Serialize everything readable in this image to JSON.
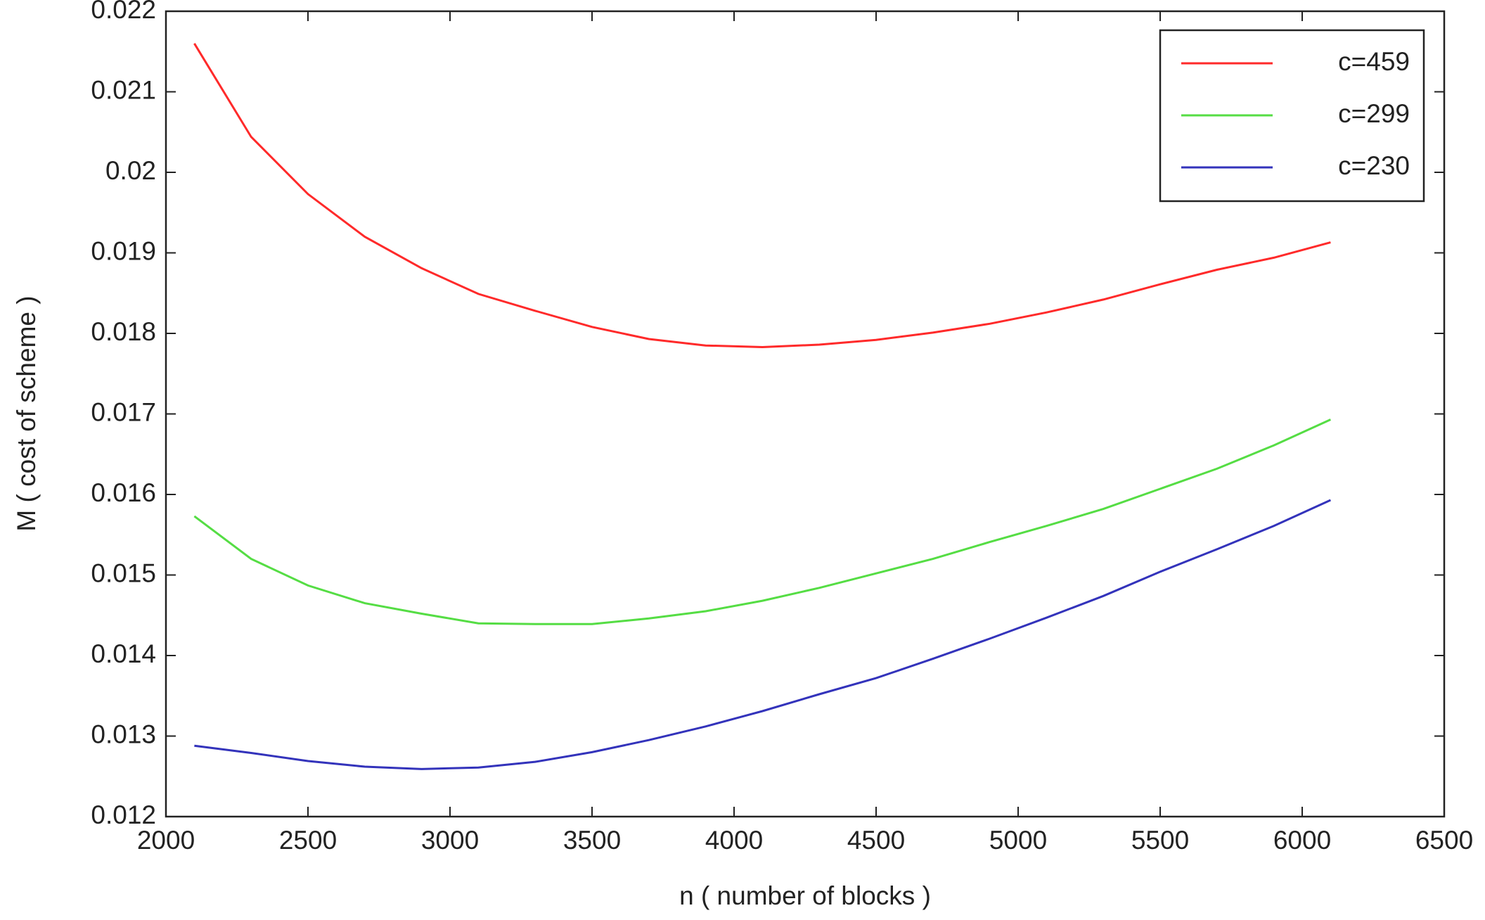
{
  "chart_data": {
    "type": "line",
    "x_label": "n ( number of blocks )",
    "y_label": "M ( cost of scheme )",
    "x": [
      2100,
      2300,
      2500,
      2700,
      2900,
      3100,
      3300,
      3500,
      3700,
      3900,
      4100,
      4300,
      4500,
      4700,
      4900,
      5100,
      5300,
      5500,
      5700,
      5900,
      6100
    ],
    "series": [
      {
        "name": "c=459",
        "color": "#ff2a2a",
        "values": [
          0.0216,
          0.02044,
          0.01973,
          0.0192,
          0.01881,
          0.01849,
          0.01828,
          0.01808,
          0.01793,
          0.01785,
          0.01783,
          0.01786,
          0.01792,
          0.01801,
          0.01812,
          0.01826,
          0.01842,
          0.01861,
          0.01879,
          0.01894,
          0.01913
        ]
      },
      {
        "name": "c=299",
        "color": "#55dd44",
        "values": [
          0.01573,
          0.0152,
          0.01487,
          0.01465,
          0.01452,
          0.0144,
          0.01439,
          0.01439,
          0.01446,
          0.01455,
          0.01468,
          0.01484,
          0.01502,
          0.0152,
          0.01541,
          0.01561,
          0.01582,
          0.01607,
          0.01632,
          0.01661,
          0.01693
        ]
      },
      {
        "name": "c=230",
        "color": "#3333bb",
        "values": [
          0.01288,
          0.01279,
          0.01269,
          0.01262,
          0.01259,
          0.01261,
          0.01268,
          0.0128,
          0.01295,
          0.01312,
          0.01331,
          0.01352,
          0.01372,
          0.01396,
          0.01421,
          0.01447,
          0.01474,
          0.01504,
          0.01532,
          0.01561,
          0.01593
        ]
      }
    ],
    "xlim": [
      2000,
      6500
    ],
    "xticks": [
      2000,
      2500,
      3000,
      3500,
      4000,
      4500,
      5000,
      5500,
      6000,
      6500
    ],
    "ylim": [
      0.012,
      0.022
    ],
    "yticks": [
      0.012,
      0.013,
      0.014,
      0.015,
      0.016,
      0.017,
      0.018,
      0.019,
      0.02,
      0.021,
      0.022
    ],
    "grid": false,
    "legend": "upper right"
  }
}
